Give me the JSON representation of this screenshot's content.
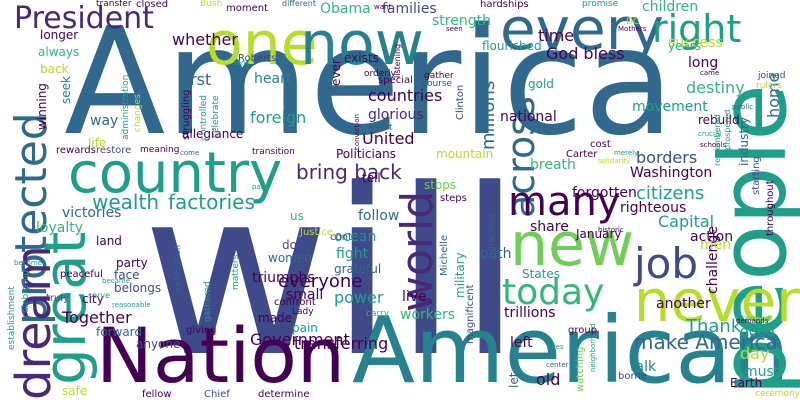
{
  "palette": {
    "indigo": "#482878",
    "dark_purple": "#440154",
    "slate_blue": "#3e4a89",
    "steel_blue": "#31688e",
    "teal": "#26828e",
    "green_teal": "#1f9e89",
    "green": "#35b779",
    "lime": "#6ece58",
    "yellow_green": "#b5de2b",
    "yellow": "#fde725"
  },
  "words": [
    {
      "text": "will",
      "color": "slate_blue"
    },
    {
      "text": "America",
      "color": "steel_blue"
    },
    {
      "text": "American",
      "color": "teal"
    },
    {
      "text": "Nation",
      "color": "dark_purple"
    },
    {
      "text": "country",
      "color": "green_teal"
    },
    {
      "text": "people",
      "color": "green_teal"
    },
    {
      "text": "one",
      "color": "yellow_green"
    },
    {
      "text": "now",
      "color": "teal"
    },
    {
      "text": "every",
      "color": "steel_blue"
    },
    {
      "text": "new",
      "color": "lime"
    },
    {
      "text": "never",
      "color": "yellow_green"
    },
    {
      "text": "great",
      "color": "green_teal"
    },
    {
      "text": "protected",
      "color": "steel_blue"
    },
    {
      "text": "dream",
      "color": "indigo"
    },
    {
      "text": "world",
      "color": "indigo"
    },
    {
      "text": "across",
      "color": "steel_blue"
    },
    {
      "text": "job",
      "color": "slate_blue"
    },
    {
      "text": "many",
      "color": "dark_purple"
    },
    {
      "text": "today",
      "color": "green"
    },
    {
      "text": "right",
      "color": "green_teal"
    },
    {
      "text": "President",
      "color": "indigo"
    },
    {
      "text": "bring back",
      "color": "indigo"
    },
    {
      "text": "wealth",
      "color": "green_teal"
    },
    {
      "text": "factories",
      "color": "green_teal"
    },
    {
      "text": "make America",
      "color": "steel_blue"
    },
    {
      "text": "Government",
      "color": "dark_purple"
    },
    {
      "text": "everyone",
      "color": "dark_purple"
    },
    {
      "text": "Together",
      "color": "dark_purple"
    },
    {
      "text": "Thank",
      "color": "green_teal"
    },
    {
      "text": "citizens",
      "color": "green_teal"
    },
    {
      "text": "Capital",
      "color": "green_teal"
    },
    {
      "text": "Obama",
      "color": "green"
    },
    {
      "text": "families",
      "color": "slate_blue"
    },
    {
      "text": "foreign",
      "color": "green_teal"
    },
    {
      "text": "heart",
      "color": "teal"
    },
    {
      "text": "first",
      "color": "steel_blue"
    },
    {
      "text": "whether",
      "color": "dark_purple"
    },
    {
      "text": "God bless",
      "color": "dark_purple"
    },
    {
      "text": "countries",
      "color": "dark_purple"
    },
    {
      "text": "glorious",
      "color": "indigo"
    },
    {
      "text": "United",
      "color": "dark_purple"
    },
    {
      "text": "national",
      "color": "dark_purple"
    },
    {
      "text": "millions",
      "color": "steel_blue"
    },
    {
      "text": "borders",
      "color": "slate_blue"
    },
    {
      "text": "Washington",
      "color": "dark_purple"
    },
    {
      "text": "forgotten",
      "color": "dark_purple"
    },
    {
      "text": "breath",
      "color": "green"
    },
    {
      "text": "power",
      "color": "green_teal"
    },
    {
      "text": "live",
      "color": "dark_purple"
    },
    {
      "text": "left",
      "color": "dark_purple"
    },
    {
      "text": "old",
      "color": "dark_purple"
    },
    {
      "text": "day",
      "color": "yellow_green"
    },
    {
      "text": "must",
      "color": "green_teal"
    },
    {
      "text": "Earth",
      "color": "dark_purple"
    },
    {
      "text": "talk",
      "color": "teal"
    },
    {
      "text": "good",
      "color": "green_teal"
    },
    {
      "text": "home",
      "color": "steel_blue"
    },
    {
      "text": "time",
      "color": "dark_purple"
    },
    {
      "text": "strength",
      "color": "green"
    },
    {
      "text": "children",
      "color": "green"
    },
    {
      "text": "success",
      "color": "yellow_green"
    },
    {
      "text": "destiny",
      "color": "green"
    },
    {
      "text": "movement",
      "color": "green_teal"
    },
    {
      "text": "long",
      "color": "dark_purple"
    },
    {
      "text": "years",
      "color": "green"
    },
    {
      "text": "flourished",
      "color": "green_teal"
    },
    {
      "text": "rebuild",
      "color": "dark_purple"
    },
    {
      "text": "righteous",
      "color": "dark_purple"
    },
    {
      "text": "action",
      "color": "dark_purple"
    },
    {
      "text": "challenge",
      "color": "dark_purple"
    },
    {
      "text": "men",
      "color": "yellow_green"
    },
    {
      "text": "another",
      "color": "dark_purple"
    },
    {
      "text": "share",
      "color": "dark_purple"
    },
    {
      "text": "January",
      "color": "dark_purple"
    },
    {
      "text": "Politicians",
      "color": "dark_purple"
    },
    {
      "text": "mountain",
      "color": "yellow_green"
    },
    {
      "text": "tell",
      "color": "dark_purple"
    },
    {
      "text": "stops",
      "color": "lime"
    },
    {
      "text": "follow",
      "color": "steel_blue"
    },
    {
      "text": "ocean",
      "color": "green_teal"
    },
    {
      "text": "fight",
      "color": "green_teal"
    },
    {
      "text": "grateful",
      "color": "steel_blue"
    },
    {
      "text": "controls",
      "color": "slate_blue"
    },
    {
      "text": "oath",
      "color": "steel_blue"
    },
    {
      "text": "States",
      "color": "green_teal"
    },
    {
      "text": "trillions",
      "color": "dark_purple"
    },
    {
      "text": "workers",
      "color": "green"
    },
    {
      "text": "transferring",
      "color": "dark_purple"
    },
    {
      "text": "pain",
      "color": "green_teal"
    },
    {
      "text": "small",
      "color": "dark_purple"
    },
    {
      "text": "women",
      "color": "steel_blue"
    },
    {
      "text": "triumphs",
      "color": "dark_purple"
    },
    {
      "text": "done",
      "color": "slate_blue"
    },
    {
      "text": "us",
      "color": "green"
    },
    {
      "text": "Justice",
      "color": "yellow_green"
    },
    {
      "text": "victories",
      "color": "steel_blue"
    },
    {
      "text": "loyalty",
      "color": "green"
    },
    {
      "text": "land",
      "color": "dark_purple"
    },
    {
      "text": "party",
      "color": "dark_purple"
    },
    {
      "text": "face",
      "color": "slate_blue"
    },
    {
      "text": "belongs",
      "color": "slate_blue"
    },
    {
      "text": "city",
      "color": "dark_purple"
    },
    {
      "text": "forward",
      "color": "steel_blue"
    },
    {
      "text": "anyone",
      "color": "slate_blue"
    },
    {
      "text": "safe",
      "color": "yellow_green"
    },
    {
      "text": "winning",
      "color": "dark_purple"
    },
    {
      "text": "way",
      "color": "steel_blue"
    },
    {
      "text": "life",
      "color": "yellow_green"
    },
    {
      "text": "rewards",
      "color": "dark_purple"
    },
    {
      "text": "restore",
      "color": "slate_blue"
    },
    {
      "text": "meaning",
      "color": "dark_purple"
    },
    {
      "text": "back",
      "color": "yellow_green"
    },
    {
      "text": "always",
      "color": "green"
    },
    {
      "text": "longer",
      "color": "dark_purple"
    },
    {
      "text": "seek",
      "color": "teal"
    },
    {
      "text": "struggling",
      "color": "dark_purple"
    },
    {
      "text": "allegiance",
      "color": "dark_purple"
    },
    {
      "text": "controlled",
      "color": "green_teal"
    },
    {
      "text": "celebrate",
      "color": "green_teal"
    },
    {
      "text": "administration",
      "color": "green_teal"
    },
    {
      "text": "changes",
      "color": "yellow_green"
    },
    {
      "text": "closed",
      "color": "dark_purple"
    },
    {
      "text": "transfer",
      "color": "dark_purple"
    },
    {
      "text": "Bush",
      "color": "yellow_green"
    },
    {
      "text": "different",
      "color": "steel_blue"
    },
    {
      "text": "moment",
      "color": "dark_purple"
    },
    {
      "text": "want",
      "color": "dark_purple"
    },
    {
      "text": "hardships",
      "color": "dark_purple"
    },
    {
      "text": "promise",
      "color": "green_teal"
    },
    {
      "text": "DC",
      "color": "yellow_green"
    },
    {
      "text": "Mothers",
      "color": "dark_purple"
    },
    {
      "text": "seen",
      "color": "dark_purple"
    },
    {
      "text": "exists",
      "color": "dark_purple"
    },
    {
      "text": "orderly",
      "color": "dark_purple"
    },
    {
      "text": "Roberts",
      "color": "slate_blue"
    },
    {
      "text": "tens",
      "color": "green_teal"
    },
    {
      "text": "ever",
      "color": "dark_purple"
    },
    {
      "text": "special",
      "color": "dark_purple"
    },
    {
      "text": "gather",
      "color": "dark_purple"
    },
    {
      "text": "course",
      "color": "slate_blue"
    },
    {
      "text": "Clinton",
      "color": "slate_blue"
    },
    {
      "text": "gold",
      "color": "green_teal"
    },
    {
      "text": "came",
      "color": "dark_purple"
    },
    {
      "text": "joined",
      "color": "slate_blue"
    },
    {
      "text": "rulers",
      "color": "yellow_green"
    },
    {
      "text": "public",
      "color": "steel_blue"
    },
    {
      "text": "crucial",
      "color": "green_teal"
    },
    {
      "text": "schools",
      "color": "dark_purple"
    },
    {
      "text": "remembered",
      "color": "green_teal"
    },
    {
      "text": "prospered",
      "color": "green_teal"
    },
    {
      "text": "industry",
      "color": "steel_blue"
    },
    {
      "text": "starting",
      "color": "slate_blue"
    },
    {
      "text": "throughout",
      "color": "dark_purple"
    },
    {
      "text": "reaped",
      "color": "green"
    },
    {
      "text": "demands",
      "color": "dark_purple"
    },
    {
      "text": "ceremony",
      "color": "yellow_green"
    },
    {
      "text": "borne",
      "color": "slate_blue"
    },
    {
      "text": "neighborhood",
      "color": "green_teal"
    },
    {
      "text": "let",
      "color": "steel_blue"
    },
    {
      "text": "center",
      "color": "steel_blue"
    },
    {
      "text": "likes",
      "color": "green_teal"
    },
    {
      "text": "watching",
      "color": "lime"
    },
    {
      "text": "group",
      "color": "dark_purple"
    },
    {
      "text": "magnificent",
      "color": "slate_blue"
    },
    {
      "text": "military",
      "color": "green_teal"
    },
    {
      "text": "Michelle",
      "color": "steel_blue"
    },
    {
      "text": "gracious",
      "color": "steel_blue"
    },
    {
      "text": "historic",
      "color": "dark_purple"
    },
    {
      "text": "steps",
      "color": "dark_purple"
    },
    {
      "text": "cost",
      "color": "dark_purple"
    },
    {
      "text": "Carter",
      "color": "dark_purple"
    },
    {
      "text": "merely",
      "color": "green_teal"
    },
    {
      "text": "effort",
      "color": "steel_blue"
    },
    {
      "text": "aid",
      "color": "teal"
    },
    {
      "text": "listening",
      "color": "dark_purple"
    },
    {
      "text": "conviction",
      "color": "dark_purple"
    },
    {
      "text": "solidarity",
      "color": "yellow_green"
    },
    {
      "text": "transition",
      "color": "dark_purple"
    },
    {
      "text": "come",
      "color": "steel_blue"
    },
    {
      "text": "carry",
      "color": "green"
    },
    {
      "text": "Lady",
      "color": "dark_purple"
    },
    {
      "text": "confront",
      "color": "dark_purple"
    },
    {
      "text": "made",
      "color": "dark_purple"
    },
    {
      "text": "giving",
      "color": "dark_purple"
    },
    {
      "text": "Chief",
      "color": "slate_blue"
    },
    {
      "text": "determine",
      "color": "dark_purple"
    },
    {
      "text": "fellow",
      "color": "dark_purple"
    },
    {
      "text": "gathered",
      "color": "green_teal"
    },
    {
      "text": "matters",
      "color": "green_teal"
    },
    {
      "text": "celebration",
      "color": "steel_blue"
    },
    {
      "text": "part",
      "color": "green_teal"
    },
    {
      "text": "become",
      "color": "green_teal"
    },
    {
      "text": "became",
      "color": "green_teal"
    },
    {
      "text": "reasonable",
      "color": "green_teal"
    },
    {
      "text": "serve",
      "color": "green_teal"
    },
    {
      "text": "truly",
      "color": "slate_blue"
    },
    {
      "text": "peaceful",
      "color": "dark_purple"
    },
    {
      "text": "celebrated",
      "color": "green_teal"
    },
    {
      "text": "establishment",
      "color": "green_teal"
    }
  ]
}
